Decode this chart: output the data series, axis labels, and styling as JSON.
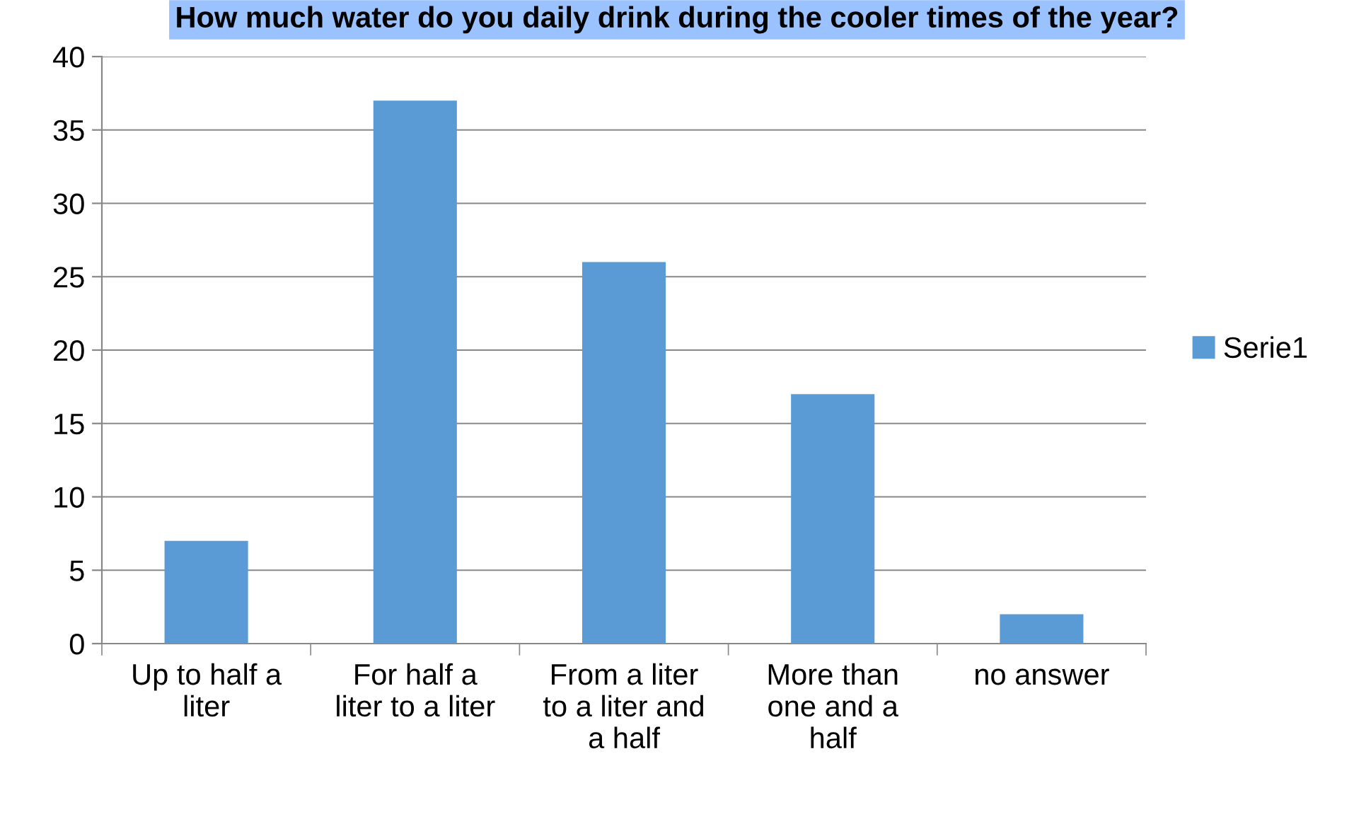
{
  "chart_data": {
    "type": "bar",
    "title": "How much water do you daily drink during the cooler times of the year?",
    "categories": [
      "Up to half a\nliter",
      "For half a\nliter to a liter",
      "From a liter\nto a liter and\na half",
      "More than\none and a\nhalf",
      "no answer"
    ],
    "series": [
      {
        "name": "Serie1",
        "color": "#5b9bd5",
        "values": [
          7,
          37,
          26,
          17,
          2
        ]
      }
    ],
    "ylim": [
      0,
      40
    ],
    "yticks": [
      0,
      5,
      10,
      15,
      20,
      25,
      30,
      35,
      40
    ],
    "grid": "y",
    "legend": "right"
  }
}
